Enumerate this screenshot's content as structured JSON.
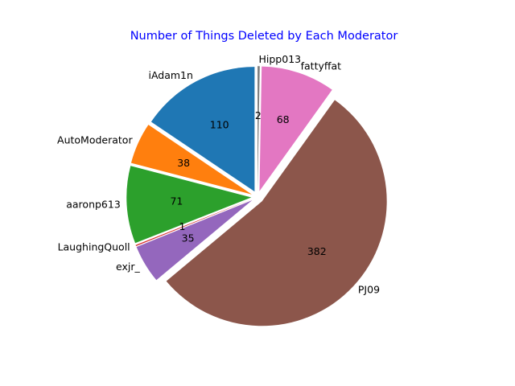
{
  "chart_data": {
    "type": "pie",
    "title": "Number of Things Deleted by Each Moderator",
    "categories": [
      "iAdam1n",
      "AutoModerator",
      "aaronp613",
      "LaughingQuoll",
      "exjr_",
      "PJ09",
      "fattyffat",
      "Hipp013"
    ],
    "values": [
      110,
      38,
      71,
      1,
      35,
      382,
      68,
      2
    ],
    "value_labels": [
      "110",
      "38",
      "71",
      "1",
      "35",
      "382",
      "68",
      "2"
    ],
    "colors": [
      "#1f77b4",
      "#ff7f0e",
      "#2ca02c",
      "#d62728",
      "#9467bd",
      "#8c564b",
      "#e377c2",
      "#7f7f7f"
    ],
    "start_angle_deg": 90,
    "direction": "counterclockwise",
    "exploded": true
  }
}
